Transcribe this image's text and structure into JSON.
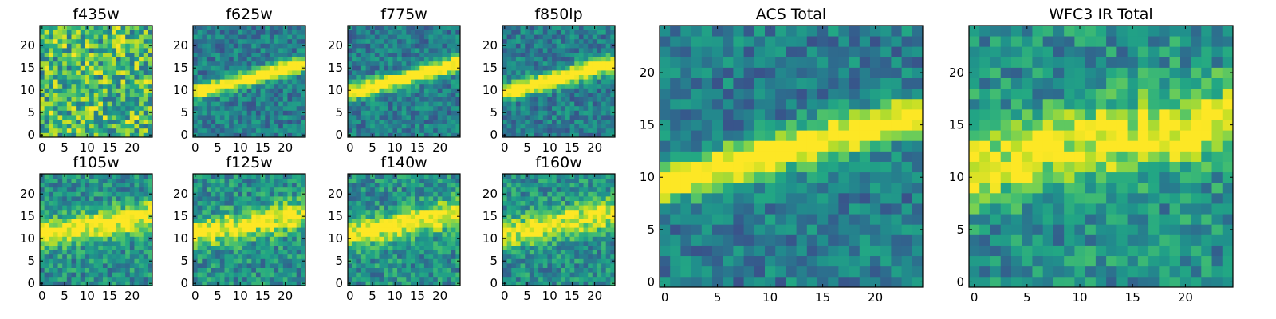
{
  "figure": {
    "background": "#ffffff"
  },
  "chart_data": [
    {
      "type": "heatmap",
      "title": "f435w",
      "xlim": [
        0,
        25
      ],
      "ylim": [
        0,
        25
      ],
      "xticks": [
        0,
        5,
        10,
        15,
        20
      ],
      "yticks": [
        0,
        5,
        10,
        15,
        20
      ],
      "colormap": "viridis",
      "grid": false,
      "pattern": "noise",
      "band": null
    },
    {
      "type": "heatmap",
      "title": "f625w",
      "xlim": [
        0,
        25
      ],
      "ylim": [
        0,
        25
      ],
      "xticks": [
        0,
        5,
        10,
        15,
        20
      ],
      "yticks": [
        0,
        5,
        10,
        15,
        20
      ],
      "colormap": "viridis",
      "grid": false,
      "pattern": "streak",
      "band": {
        "y_at_x0": 9.5,
        "slope": 0.27,
        "sigma": 1.2
      }
    },
    {
      "type": "heatmap",
      "title": "f775w",
      "xlim": [
        0,
        25
      ],
      "ylim": [
        0,
        25
      ],
      "xticks": [
        0,
        5,
        10,
        15,
        20
      ],
      "yticks": [
        0,
        5,
        10,
        15,
        20
      ],
      "colormap": "viridis",
      "grid": false,
      "pattern": "streak",
      "band": {
        "y_at_x0": 9.5,
        "slope": 0.27,
        "sigma": 1.2
      }
    },
    {
      "type": "heatmap",
      "title": "f850lp",
      "xlim": [
        0,
        25
      ],
      "ylim": [
        0,
        25
      ],
      "xticks": [
        0,
        5,
        10,
        15,
        20
      ],
      "yticks": [
        0,
        5,
        10,
        15,
        20
      ],
      "colormap": "viridis",
      "grid": false,
      "pattern": "streak",
      "band": {
        "y_at_x0": 9.5,
        "slope": 0.27,
        "sigma": 1.3
      }
    },
    {
      "type": "heatmap",
      "title": "f105w",
      "xlim": [
        0,
        25
      ],
      "ylim": [
        0,
        25
      ],
      "xticks": [
        0,
        5,
        10,
        15,
        20
      ],
      "yticks": [
        0,
        5,
        10,
        15,
        20
      ],
      "colormap": "viridis",
      "grid": false,
      "pattern": "blob",
      "band": {
        "y_at_x0": 11,
        "slope": 0.18,
        "sigma": 2.2
      }
    },
    {
      "type": "heatmap",
      "title": "f125w",
      "xlim": [
        0,
        25
      ],
      "ylim": [
        0,
        25
      ],
      "xticks": [
        0,
        5,
        10,
        15,
        20
      ],
      "yticks": [
        0,
        5,
        10,
        15,
        20
      ],
      "colormap": "viridis",
      "grid": false,
      "pattern": "blob",
      "band": {
        "y_at_x0": 11,
        "slope": 0.18,
        "sigma": 2.2
      }
    },
    {
      "type": "heatmap",
      "title": "f140w",
      "xlim": [
        0,
        25
      ],
      "ylim": [
        0,
        25
      ],
      "xticks": [
        0,
        5,
        10,
        15,
        20
      ],
      "yticks": [
        0,
        5,
        10,
        15,
        20
      ],
      "colormap": "viridis",
      "grid": false,
      "pattern": "blob",
      "band": {
        "y_at_x0": 11,
        "slope": 0.2,
        "sigma": 2.2
      }
    },
    {
      "type": "heatmap",
      "title": "f160w",
      "xlim": [
        0,
        25
      ],
      "ylim": [
        0,
        25
      ],
      "xticks": [
        0,
        5,
        10,
        15,
        20
      ],
      "yticks": [
        0,
        5,
        10,
        15,
        20
      ],
      "colormap": "viridis",
      "grid": false,
      "pattern": "blob",
      "band": {
        "y_at_x0": 11,
        "slope": 0.2,
        "sigma": 2.2
      }
    },
    {
      "type": "heatmap",
      "title": "ACS Total",
      "xlim": [
        0,
        25
      ],
      "ylim": [
        0,
        25
      ],
      "xticks": [
        0,
        5,
        10,
        15,
        20
      ],
      "yticks": [
        0,
        5,
        10,
        15,
        20
      ],
      "colormap": "viridis",
      "grid": false,
      "pattern": "streak",
      "band": {
        "y_at_x0": 9.5,
        "slope": 0.27,
        "sigma": 1.3
      }
    },
    {
      "type": "heatmap",
      "title": "WFC3 IR Total",
      "xlim": [
        0,
        25
      ],
      "ylim": [
        0,
        25
      ],
      "xticks": [
        0,
        5,
        10,
        15,
        20
      ],
      "yticks": [
        0,
        5,
        10,
        15,
        20
      ],
      "colormap": "viridis",
      "grid": false,
      "pattern": "blob",
      "band": {
        "y_at_x0": 11,
        "slope": 0.2,
        "sigma": 2.3
      }
    }
  ]
}
